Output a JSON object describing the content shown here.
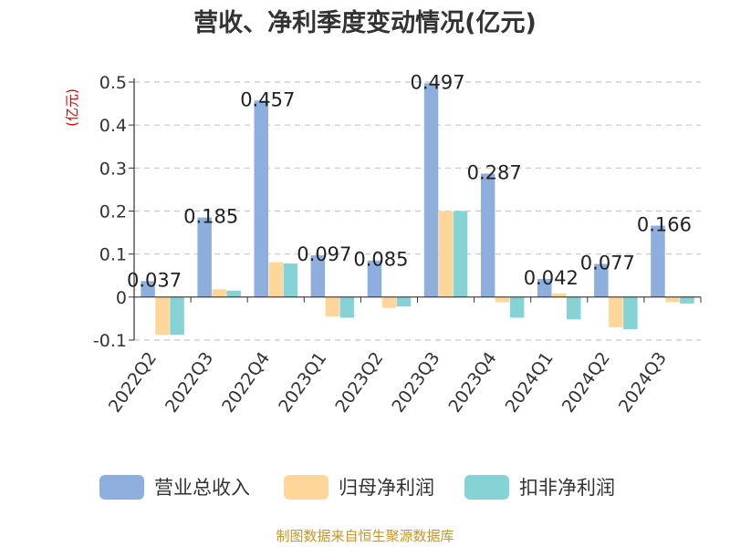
{
  "chart_data": {
    "type": "bar",
    "title": "营收、净利季度变动情况(亿元)",
    "unit_label": "(亿元)",
    "categories": [
      "2022Q2",
      "2022Q3",
      "2022Q4",
      "2023Q1",
      "2023Q2",
      "2023Q3",
      "2023Q4",
      "2024Q1",
      "2024Q2",
      "2024Q3"
    ],
    "series": [
      {
        "name": "营业总收入",
        "color": "#8eaedd",
        "values": [
          0.037,
          0.185,
          0.457,
          0.097,
          0.085,
          0.497,
          0.287,
          0.042,
          0.077,
          0.166
        ]
      },
      {
        "name": "归母净利润",
        "color": "#ffd699",
        "values": [
          -0.088,
          0.018,
          0.081,
          -0.045,
          -0.025,
          0.2,
          -0.012,
          0.008,
          -0.07,
          -0.012
        ]
      },
      {
        "name": "扣非净利润",
        "color": "#85d3d4",
        "values": [
          -0.088,
          0.015,
          0.078,
          -0.048,
          -0.022,
          0.2,
          -0.048,
          -0.052,
          -0.075,
          -0.015
        ]
      }
    ],
    "data_labels": [
      "0.037",
      "0.185",
      "0.457",
      "0.097",
      "0.085",
      "0.497",
      "0.287",
      "0.042",
      "0.077",
      "0.166"
    ],
    "ylim": [
      -0.1,
      0.5
    ],
    "yticks": [
      -0.1,
      0,
      0.1,
      0.2,
      0.3,
      0.4,
      0.5
    ],
    "ytick_labels": [
      "-0.1",
      "0",
      "0.1",
      "0.2",
      "0.3",
      "0.4",
      "0.5"
    ],
    "grid": true,
    "legend_position": "bottom"
  },
  "source_text": "制图数据来自恒生聚源数据库"
}
